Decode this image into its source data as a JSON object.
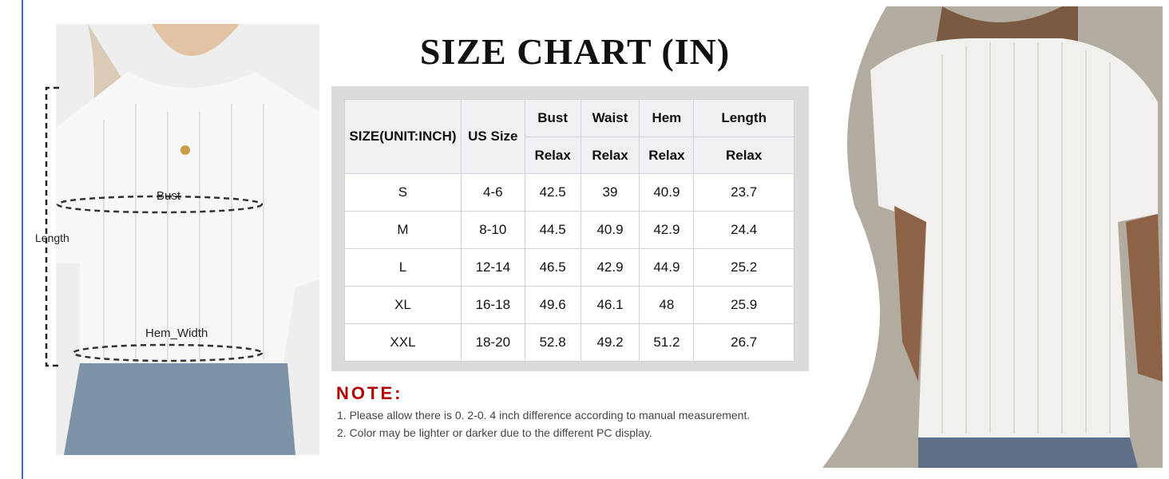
{
  "title": "SIZE CHART (IN)",
  "left_image": {
    "labels": {
      "bust": "Bust",
      "length": "Length",
      "hem": "Hem_Width"
    }
  },
  "table": {
    "headers": {
      "size": "SIZE(UNIT:INCH)",
      "us": "US Size",
      "bust": "Bust",
      "waist": "Waist",
      "hem": "Hem",
      "length": "Length",
      "sub": [
        "Relax",
        "Relax",
        "Relax",
        "Relax"
      ]
    },
    "rows": [
      [
        "S",
        "4-6",
        "42.5",
        "39",
        "40.9",
        "23.7"
      ],
      [
        "M",
        "8-10",
        "44.5",
        "40.9",
        "42.9",
        "24.4"
      ],
      [
        "L",
        "12-14",
        "46.5",
        "42.9",
        "44.9",
        "25.2"
      ],
      [
        "XL",
        "16-18",
        "49.6",
        "46.1",
        "48",
        "25.9"
      ],
      [
        "XXL",
        "18-20",
        "52.8",
        "49.2",
        "51.2",
        "26.7"
      ]
    ]
  },
  "note": {
    "heading": "NOTE:",
    "lines": [
      "1. Please allow there is 0. 2-0. 4 inch difference according to manual measurement.",
      "2. Color may be lighter or darker due to the different PC display."
    ]
  },
  "colors": {
    "note_red": "#b30000",
    "accent_line": "#3a66d8"
  }
}
